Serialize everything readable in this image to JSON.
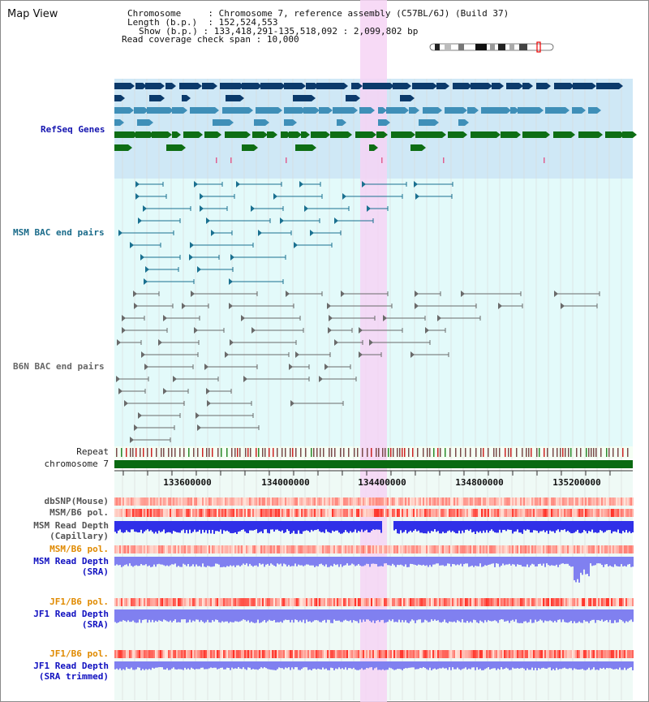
{
  "view_title": "Map View",
  "info": {
    "chromosome_label": "Chromosome",
    "chromosome_value": "Chromosome 7, reference assembly (C57BL/6J) (Build 37)",
    "length_label": "Length (b.p.)",
    "length_value": "152,524,553",
    "show_label": "Show (b.p.)",
    "show_value": "133,418,291-135,518,092 : 2,099,802 bp",
    "coverage_label": "Read coverage check span",
    "coverage_value": "10,000"
  },
  "tracks": {
    "refseq": "RefSeq Genes",
    "msm_bac": "MSM BAC end pairs",
    "b6n_bac": "B6N BAC end pairs",
    "repeat": "Repeat",
    "chromosome": "chromosome 7",
    "dbsnp": "dbSNP(Mouse)",
    "msm_b6_pol_1": "MSM/B6 pol.",
    "msm_depth_cap_1": "MSM Read Depth",
    "msm_depth_cap_2": "(Capillary)",
    "msm_b6_pol_2": "MSM/B6 pol.",
    "msm_depth_sra_1": "MSM Read Depth",
    "msm_depth_sra_2": "(SRA)",
    "jf1_b6_pol_1": "JF1/B6 pol.",
    "jf1_depth_sra_1": "JF1 Read Depth",
    "jf1_depth_sra_2": "(SRA)",
    "jf1_b6_pol_2": "JF1/B6 pol.",
    "jf1_depth_trim_1": "JF1 Read Depth",
    "jf1_depth_trim_2": "(SRA trimmed)"
  },
  "axis_ticks": [
    "133600000",
    "134000000",
    "134400000",
    "134800000",
    "135200000"
  ],
  "colors": {
    "refseq_bg": "#cfe8f6",
    "bac_bg": "#e3fafa",
    "highlight": "#f6d4f4",
    "gene_dark": "#0b3a6b",
    "gene_mid": "#3f8fb8",
    "gene_green": "#0e6e14",
    "msm_bac": "#1a7090",
    "b6n_bac": "#6a6a6a",
    "chromosome_bar": "#0a6a12",
    "depth_blue": "#3030e8",
    "depth_light": "#8080f0",
    "orange_label": "#e08a00",
    "blue_label": "#1010c0"
  }
}
